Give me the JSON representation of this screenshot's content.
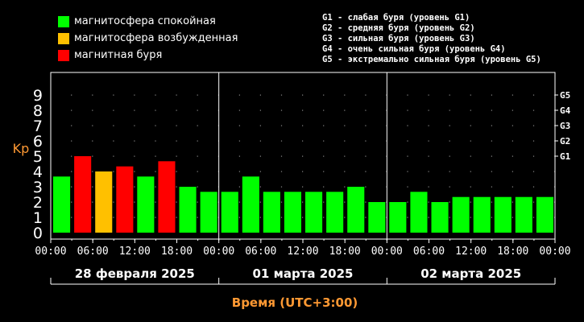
{
  "legend": [
    {
      "label": "магнитосфера спокойная",
      "color": "#00ff00"
    },
    {
      "label": "магнитосфера возбужденная",
      "color": "#ffc000"
    },
    {
      "label": "магнитная буря",
      "color": "#ff0000"
    }
  ],
  "g_levels": [
    "G1 - слабая буря (уровень G1)",
    "G2 - средняя буря (уровень G2)",
    "G3 - сильная буря (уровень G3)",
    "G4 - очень сильная буря (уровень G4)",
    "G5 - экстремально сильная буря (уровень G5)"
  ],
  "chart_data": {
    "type": "bar",
    "ylabel": "Kp",
    "xlabel": "Время (UTC+3:00)",
    "ylim": [
      0,
      9
    ],
    "y_ticks": [
      "0",
      "1",
      "2",
      "3",
      "4",
      "5",
      "6",
      "7",
      "8",
      "9"
    ],
    "right_ticks": [
      {
        "value": 5,
        "label": "G1"
      },
      {
        "value": 6,
        "label": "G2"
      },
      {
        "value": 7,
        "label": "G3"
      },
      {
        "value": 8,
        "label": "G4"
      },
      {
        "value": 9,
        "label": "G5"
      }
    ],
    "x_tick_labels": [
      "00:00",
      "06:00",
      "12:00",
      "18:00",
      "00:00",
      "06:00",
      "12:00",
      "18:00",
      "00:00",
      "06:00",
      "12:00",
      "18:00",
      "00:00"
    ],
    "days": [
      "28 февраля 2025",
      "01 марта 2025",
      "02 марта 2025"
    ],
    "values": [
      3.67,
      5.0,
      4.0,
      4.33,
      3.67,
      4.67,
      3.0,
      2.67,
      2.67,
      3.67,
      2.67,
      2.67,
      2.67,
      2.67,
      3.0,
      2.0,
      2.0,
      2.67,
      2.0,
      2.33,
      2.33,
      2.33,
      2.33,
      2.33
    ],
    "bar_colors": [
      "#00ff00",
      "#ff0000",
      "#ffc000",
      "#ff0000",
      "#00ff00",
      "#ff0000",
      "#00ff00",
      "#00ff00",
      "#00ff00",
      "#00ff00",
      "#00ff00",
      "#00ff00",
      "#00ff00",
      "#00ff00",
      "#00ff00",
      "#00ff00",
      "#00ff00",
      "#00ff00",
      "#00ff00",
      "#00ff00",
      "#00ff00",
      "#00ff00",
      "#00ff00",
      "#00ff00"
    ],
    "colors": {
      "axis": "#ffffff",
      "text": "#ffffff",
      "label_accent": "#ff9933",
      "grid_dots": "#888888"
    },
    "grid": true
  }
}
